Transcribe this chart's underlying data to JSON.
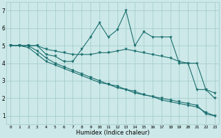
{
  "xlabel": "Humidex (Indice chaleur)",
  "bg_color": "#cce8e8",
  "line_color": "#1a6e6e",
  "grid_color": "#a0c8c8",
  "xlim": [
    -0.5,
    23.5
  ],
  "ylim": [
    0.5,
    7.5
  ],
  "xticks": [
    0,
    1,
    2,
    3,
    4,
    5,
    6,
    7,
    8,
    9,
    10,
    11,
    12,
    13,
    14,
    15,
    16,
    17,
    18,
    19,
    20,
    21,
    22,
    23
  ],
  "yticks": [
    1,
    2,
    3,
    4,
    5,
    6,
    7
  ],
  "series": [
    {
      "x": [
        0,
        1,
        2,
        3,
        4,
        5,
        6,
        7,
        8,
        9,
        10,
        11,
        12,
        13,
        14,
        15,
        16,
        17,
        18,
        19,
        20,
        21,
        22,
        23
      ],
      "y": [
        5.0,
        5.0,
        5.0,
        5.0,
        4.5,
        4.4,
        4.1,
        4.1,
        4.8,
        5.5,
        6.3,
        5.5,
        5.9,
        7.0,
        5.0,
        5.8,
        5.5,
        5.5,
        5.5,
        4.0,
        4.0,
        4.0,
        2.5,
        2.0
      ]
    },
    {
      "x": [
        0,
        1,
        2,
        3,
        4,
        5,
        6,
        7,
        8,
        9,
        10,
        11,
        12,
        13,
        14,
        15,
        16,
        17,
        18,
        19,
        20,
        21,
        22,
        23
      ],
      "y": [
        5.0,
        5.0,
        5.0,
        5.0,
        4.8,
        4.7,
        4.6,
        4.5,
        4.5,
        4.5,
        4.6,
        4.6,
        4.7,
        4.8,
        4.7,
        4.6,
        4.5,
        4.4,
        4.3,
        4.1,
        4.0,
        2.5,
        2.5,
        2.3
      ]
    },
    {
      "x": [
        0,
        1,
        2,
        3,
        4,
        5,
        6,
        7,
        8,
        9,
        10,
        11,
        12,
        13,
        14,
        15,
        16,
        17,
        18,
        19,
        20,
        21,
        22,
        23
      ],
      "y": [
        5.0,
        5.0,
        4.9,
        4.5,
        4.1,
        3.9,
        3.7,
        3.5,
        3.3,
        3.1,
        2.9,
        2.8,
        2.6,
        2.5,
        2.3,
        2.2,
        2.1,
        2.0,
        1.9,
        1.8,
        1.7,
        1.6,
        1.1,
        1.0
      ]
    },
    {
      "x": [
        0,
        1,
        2,
        3,
        4,
        5,
        6,
        7,
        8,
        9,
        10,
        11,
        12,
        13,
        14,
        15,
        16,
        17,
        18,
        19,
        20,
        21,
        22,
        23
      ],
      "y": [
        5.0,
        5.0,
        5.0,
        4.7,
        4.3,
        4.0,
        3.8,
        3.6,
        3.4,
        3.2,
        3.0,
        2.8,
        2.7,
        2.5,
        2.4,
        2.2,
        2.1,
        1.9,
        1.8,
        1.7,
        1.6,
        1.5,
        1.2,
        1.0
      ]
    }
  ],
  "marker": "v",
  "markersize": 2.5,
  "linewidth": 0.8,
  "figsize": [
    3.2,
    2.0
  ],
  "dpi": 100
}
